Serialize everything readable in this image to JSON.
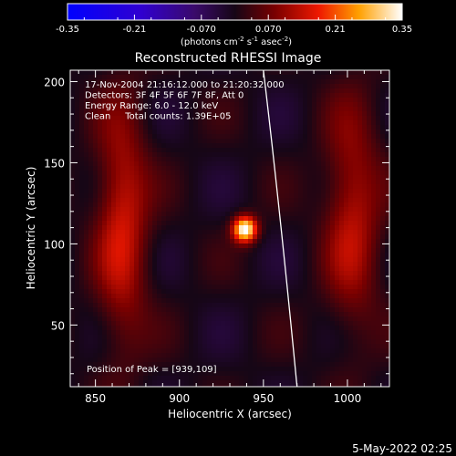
{
  "chart_data": {
    "type": "heatmap",
    "title": "Reconstructed RHESSI Image",
    "xlabel": "Heliocentric X (arcsec)",
    "ylabel": "Heliocentric Y (arcsec)",
    "xlim": [
      835,
      1025
    ],
    "ylim": [
      12,
      207
    ],
    "x_ticks": [
      850,
      900,
      950,
      1000
    ],
    "y_ticks": [
      50,
      100,
      150,
      200
    ],
    "colorbar": {
      "min": -0.35,
      "max": 0.35,
      "ticks": [
        "-0.35",
        "-0.21",
        "-0.070",
        "0.070",
        "0.21",
        "0.35"
      ],
      "units_label": "(photons cm",
      "units_sup1": "-2",
      "units_mid1": " s",
      "units_sup2": "-1",
      "units_mid2": " asec",
      "units_sup3": "-2",
      "units_end": ")"
    },
    "annotations": [
      "17-Nov-2004 21:16:12.000 to 21:20:32.000",
      "Detectors: 3F 4F 5F 6F 7F 8F, Att 0",
      "Energy Range: 6.0 - 12.0 keV",
      "Clean     Total counts: 1.39E+05"
    ],
    "peak_label": "Position of Peak = [939,109]",
    "peak": {
      "x": 939,
      "y": 109,
      "value": 0.35
    },
    "limb_arc": [
      [
        950,
        207
      ],
      [
        960,
        120
      ],
      [
        970,
        12
      ]
    ],
    "features": [
      {
        "name": "left-lobe",
        "x": 866,
        "y": 112,
        "sigma_x": 14,
        "sigma_y": 62,
        "amplitude": 0.15
      },
      {
        "name": "right-lobe",
        "x": 1003,
        "y": 117,
        "sigma_x": 15,
        "sigma_y": 58,
        "amplitude": 0.13
      }
    ],
    "grid": false,
    "colormap": "RHESSI heat (blue-purple-red-yellow-white)"
  },
  "footer": {
    "timestamp": "5-May-2022 02:25"
  }
}
